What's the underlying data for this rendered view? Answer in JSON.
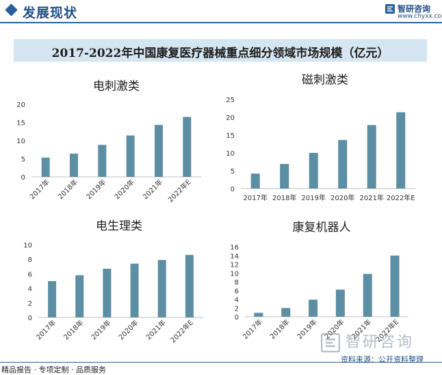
{
  "header": {
    "section_title": "发展现状",
    "logo_name": "智研咨询",
    "logo_url": "www.chyxx.com"
  },
  "banner": {
    "title": "2017-2022年中国康复医疗器械重点细分领域市场规模（亿元）"
  },
  "colors": {
    "bar": "#5c8ea4",
    "axis": "#bfbfbf",
    "accent": "#2a5f9e"
  },
  "chart_data": [
    {
      "type": "bar",
      "title": "电刺激类",
      "categories": [
        "2017年",
        "2018年",
        "2019年",
        "2020年",
        "2021年",
        "2022年E"
      ],
      "values": [
        5.3,
        6.4,
        8.8,
        11.4,
        14.3,
        16.5
      ],
      "ylim": [
        0,
        20
      ],
      "yticks": [
        0,
        5,
        10,
        15,
        20
      ],
      "rotated_labels": true,
      "grid": false
    },
    {
      "type": "bar",
      "title": "磁刺激类",
      "categories": [
        "2017年",
        "2018年",
        "2019年",
        "2020年",
        "2021年",
        "2022年E"
      ],
      "values": [
        4.2,
        6.9,
        10.0,
        13.6,
        17.8,
        21.4
      ],
      "ylim": [
        0,
        25
      ],
      "yticks": [
        0,
        5,
        10,
        15,
        20,
        25
      ],
      "rotated_labels": false,
      "grid": false
    },
    {
      "type": "bar",
      "title": "电生理类",
      "categories": [
        "2017年",
        "2018年",
        "2019年",
        "2020年",
        "2021年",
        "2022年E"
      ],
      "values": [
        5.0,
        5.8,
        6.7,
        7.4,
        7.9,
        8.6
      ],
      "ylim": [
        0,
        10
      ],
      "yticks": [
        0,
        2,
        4,
        6,
        8,
        10
      ],
      "rotated_labels": true,
      "grid": false
    },
    {
      "type": "bar",
      "title": "康复机器人",
      "categories": [
        "2017年",
        "2018年",
        "2019年",
        "2020年",
        "2021年",
        "2022年E"
      ],
      "values": [
        0.9,
        2.0,
        3.9,
        6.2,
        9.8,
        14.0
      ],
      "ylim": [
        0,
        16
      ],
      "yticks": [
        0,
        2,
        4,
        6,
        8,
        10,
        12,
        14,
        16
      ],
      "rotated_labels": true,
      "grid": false
    }
  ],
  "footer": {
    "left_text": "精品报告 · 专项定制 · 品质服务",
    "source": "资料来源：公开资料整理"
  },
  "watermark": {
    "text": "智研咨询"
  }
}
